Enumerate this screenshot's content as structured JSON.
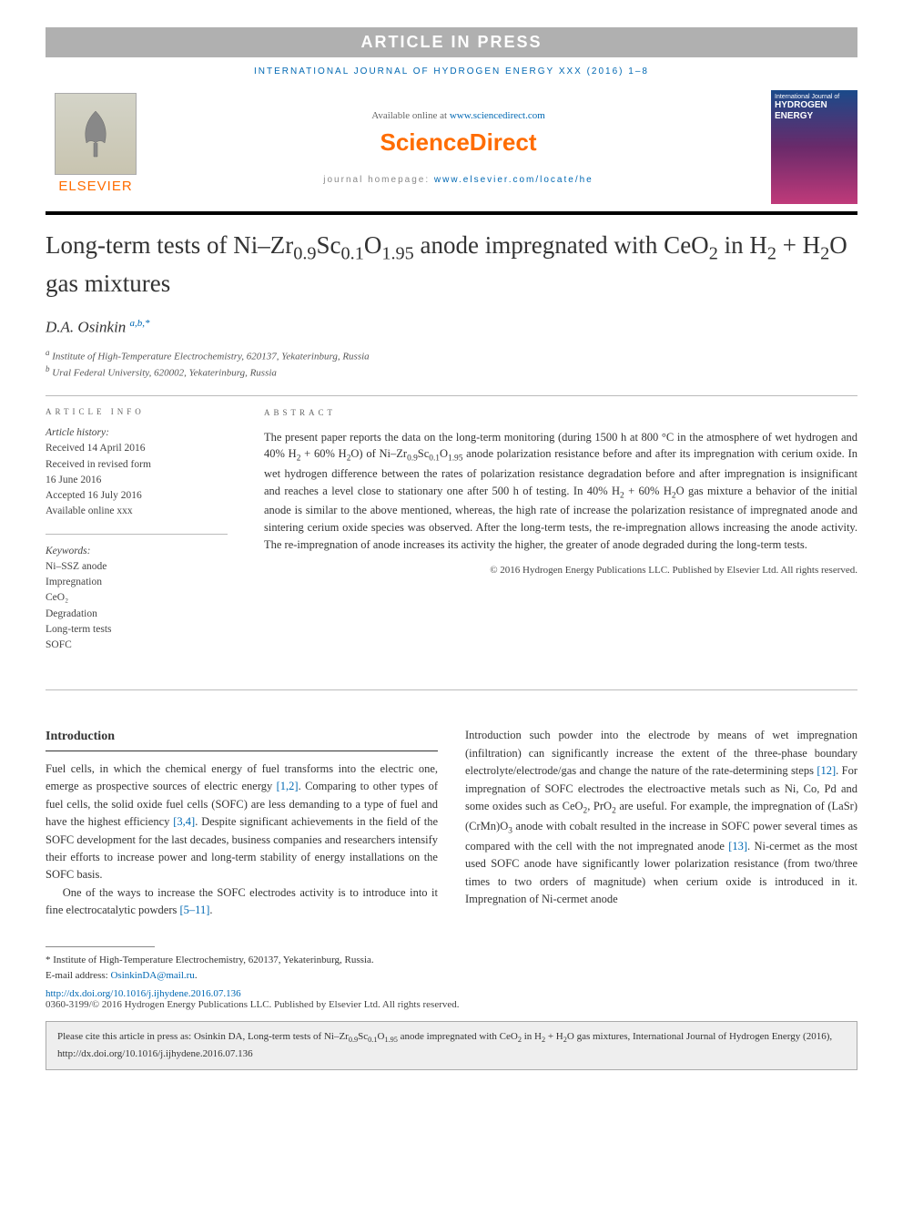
{
  "banner": "ARTICLE IN PRESS",
  "journal_ref": "INTERNATIONAL JOURNAL OF HYDROGEN ENERGY XXX (2016) 1–8",
  "publisher": "ELSEVIER",
  "available_prefix": "Available online at ",
  "available_link": "www.sciencedirect.com",
  "sciencedirect": "ScienceDirect",
  "homepage_prefix": "journal homepage: ",
  "homepage_link": "www.elsevier.com/locate/he",
  "cover": {
    "line1": "International Journal of",
    "line2": "HYDROGEN",
    "line3": "ENERGY"
  },
  "title_html": "Long-term tests of Ni–Zr<sub>0.9</sub>Sc<sub>0.1</sub>O<sub>1.95</sub> anode impregnated with CeO<sub>2</sub> in H<sub>2</sub> + H<sub>2</sub>O gas mixtures",
  "author_name": "D.A. Osinkin",
  "author_sup": "a,b,*",
  "affiliations": [
    {
      "sup": "a",
      "text": "Institute of High-Temperature Electrochemistry, 620137, Yekaterinburg, Russia"
    },
    {
      "sup": "b",
      "text": "Ural Federal University, 620002, Yekaterinburg, Russia"
    }
  ],
  "info_heading": "ARTICLE INFO",
  "history_label": "Article history:",
  "history": [
    "Received 14 April 2016",
    "Received in revised form",
    "16 June 2016",
    "Accepted 16 July 2016",
    "Available online xxx"
  ],
  "keywords_label": "Keywords:",
  "keywords": [
    "Ni–SSZ anode",
    "Impregnation",
    "CeO₂",
    "Degradation",
    "Long-term tests",
    "SOFC"
  ],
  "abs_heading": "ABSTRACT",
  "abstract_html": "The present paper reports the data on the long-term monitoring (during 1500 h at 800 °C in the atmosphere of wet hydrogen and 40% H<sub>2</sub> + 60% H<sub>2</sub>O) of Ni–Zr<sub>0.9</sub>Sc<sub>0.1</sub>O<sub>1.95</sub> anode polarization resistance before and after its impregnation with cerium oxide. In wet hydrogen difference between the rates of polarization resistance degradation before and after impregnation is insignificant and reaches a level close to stationary one after 500 h of testing. In 40% H<sub>2</sub> + 60% H<sub>2</sub>O gas mixture a behavior of the initial anode is similar to the above mentioned, whereas, the high rate of increase the polarization resistance of impregnated anode and sintering cerium oxide species was observed. After the long-term tests, the re-impregnation allows increasing the anode activity. The re-impregnation of anode increases its activity the higher, the greater of anode degraded during the long-term tests.",
  "abs_copyright": "© 2016 Hydrogen Energy Publications LLC. Published by Elsevier Ltd. All rights reserved.",
  "intro_heading": "Introduction",
  "intro_p1_html": "Fuel cells, in which the chemical energy of fuel transforms into the electric one, emerge as prospective sources of electric energy <span class='ref-link'>[1,2]</span>. Comparing to other types of fuel cells, the solid oxide fuel cells (SOFC) are less demanding to a type of fuel and have the highest efficiency <span class='ref-link'>[3,4]</span>. Despite significant achievements in the field of the SOFC development for the last decades, business companies and researchers intensify their efforts to increase power and long-term stability of energy installations on the SOFC basis.",
  "intro_p2_html": "One of the ways to increase the SOFC electrodes activity is to introduce into it fine electrocatalytic powders <span class='ref-link'>[5–11]</span>.",
  "intro_col2_html": "Introduction such powder into the electrode by means of wet impregnation (infiltration) can significantly increase the extent of the three-phase boundary electrolyte/electrode/gas and change the nature of the rate-determining steps <span class='ref-link'>[12]</span>. For impregnation of SOFC electrodes the electroactive metals such as Ni, Co, Pd and some oxides such as CeO<sub>2</sub>, PrO<sub>2</sub> are useful. For example, the impregnation of (LaSr)(CrMn)O<sub>3</sub> anode with cobalt resulted in the increase in SOFC power several times as compared with the cell with the not impregnated anode <span class='ref-link'>[13]</span>. Ni-cermet as the most used SOFC anode have significantly lower polarization resistance (from two/three times to two orders of magnitude) when cerium oxide is introduced in it. Impregnation of Ni-cermet anode",
  "footnote_star": "* Institute of High-Temperature Electrochemistry, 620137, Yekaterinburg, Russia.",
  "email_label": "E-mail address: ",
  "email": "OsinkinDA@mail.ru",
  "doi": "http://dx.doi.org/10.1016/j.ijhydene.2016.07.136",
  "bottom_copy": "0360-3199/© 2016 Hydrogen Energy Publications LLC. Published by Elsevier Ltd. All rights reserved.",
  "cite_box_html": "Please cite this article in press as: Osinkin DA, Long-term tests of Ni–Zr<sub>0.9</sub>Sc<sub>0.1</sub>O<sub>1.95</sub> anode impregnated with CeO<sub>2</sub> in H<sub>2</sub> + H<sub>2</sub>O gas mixtures, International Journal of Hydrogen Energy (2016), http://dx.doi.org/10.1016/j.ijhydene.2016.07.136"
}
